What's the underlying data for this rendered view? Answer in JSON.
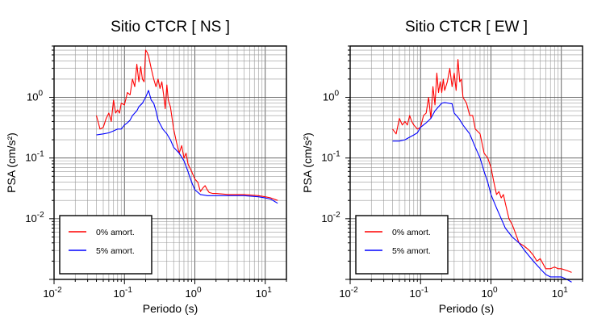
{
  "chart_data": [
    {
      "type": "line",
      "title": "Sitio CTCR [ NS ]",
      "xlabel": "Periodo (s)",
      "ylabel": "PSA (cm/s²)",
      "xscale": "log",
      "yscale": "log",
      "xlim": [
        0.01,
        20
      ],
      "ylim": [
        0.001,
        7
      ],
      "grid": true,
      "legend": {
        "position": "bottom-left",
        "entries": [
          "0% amort.",
          "5% amort."
        ]
      },
      "series": [
        {
          "name": "0% amort.",
          "color": "#ff0000",
          "x": [
            0.04,
            0.045,
            0.05,
            0.055,
            0.06,
            0.065,
            0.07,
            0.075,
            0.08,
            0.085,
            0.09,
            0.1,
            0.11,
            0.12,
            0.13,
            0.14,
            0.15,
            0.16,
            0.17,
            0.18,
            0.19,
            0.2,
            0.21,
            0.22,
            0.24,
            0.26,
            0.28,
            0.3,
            0.32,
            0.34,
            0.36,
            0.38,
            0.4,
            0.42,
            0.45,
            0.5,
            0.55,
            0.6,
            0.65,
            0.7,
            0.75,
            0.8,
            0.9,
            1.0,
            1.1,
            1.2,
            1.3,
            1.4,
            1.5,
            1.6,
            1.8,
            2.0,
            3.0,
            5.0,
            8.0,
            10.0,
            12.0,
            15.0
          ],
          "y": [
            0.5,
            0.3,
            0.32,
            0.45,
            0.55,
            0.4,
            0.9,
            0.55,
            0.62,
            0.55,
            0.8,
            0.75,
            1.2,
            1.1,
            2.0,
            1.5,
            3.5,
            1.8,
            3.2,
            2.0,
            1.8,
            6.0,
            5.5,
            4.8,
            3.0,
            2.0,
            1.5,
            2.0,
            1.4,
            1.8,
            1.1,
            0.65,
            1.6,
            0.9,
            0.7,
            0.3,
            0.18,
            0.12,
            0.16,
            0.1,
            0.12,
            0.08,
            0.06,
            0.045,
            0.04,
            0.028,
            0.032,
            0.035,
            0.03,
            0.027,
            0.026,
            0.026,
            0.025,
            0.025,
            0.024,
            0.023,
            0.022,
            0.02
          ]
        },
        {
          "name": "5% amort.",
          "color": "#0000ff",
          "x": [
            0.04,
            0.05,
            0.06,
            0.07,
            0.08,
            0.09,
            0.1,
            0.11,
            0.12,
            0.13,
            0.14,
            0.15,
            0.16,
            0.18,
            0.2,
            0.22,
            0.24,
            0.26,
            0.28,
            0.3,
            0.35,
            0.4,
            0.45,
            0.5,
            0.6,
            0.7,
            0.8,
            0.9,
            1.0,
            1.2,
            1.5,
            2.0,
            3.0,
            5.0,
            8.0,
            10.0,
            12.0,
            15.0
          ],
          "y": [
            0.24,
            0.25,
            0.26,
            0.28,
            0.3,
            0.3,
            0.35,
            0.38,
            0.42,
            0.5,
            0.55,
            0.6,
            0.7,
            0.8,
            1.0,
            1.3,
            0.9,
            0.8,
            0.6,
            0.42,
            0.3,
            0.25,
            0.2,
            0.15,
            0.12,
            0.09,
            0.06,
            0.04,
            0.03,
            0.025,
            0.024,
            0.024,
            0.024,
            0.024,
            0.023,
            0.022,
            0.021,
            0.018
          ]
        }
      ]
    },
    {
      "type": "line",
      "title": "Sitio CTCR [ EW ]",
      "xlabel": "Periodo (s)",
      "ylabel": "PSA (cm/s²)",
      "xscale": "log",
      "yscale": "log",
      "xlim": [
        0.01,
        20
      ],
      "ylim": [
        0.001,
        7
      ],
      "grid": true,
      "legend": {
        "position": "bottom-left",
        "entries": [
          "0% amort.",
          "5% amort."
        ]
      },
      "series": [
        {
          "name": "0% amort.",
          "color": "#ff0000",
          "x": [
            0.04,
            0.045,
            0.05,
            0.055,
            0.06,
            0.065,
            0.07,
            0.075,
            0.08,
            0.09,
            0.1,
            0.11,
            0.12,
            0.13,
            0.14,
            0.15,
            0.16,
            0.17,
            0.18,
            0.19,
            0.2,
            0.21,
            0.22,
            0.24,
            0.26,
            0.28,
            0.3,
            0.32,
            0.34,
            0.36,
            0.38,
            0.4,
            0.45,
            0.5,
            0.55,
            0.6,
            0.7,
            0.8,
            0.9,
            1.0,
            1.1,
            1.2,
            1.3,
            1.4,
            1.5,
            1.6,
            1.8,
            2.0,
            2.2,
            2.5,
            3.0,
            3.5,
            4.0,
            4.5,
            5.0,
            5.5,
            6.0,
            7.0,
            8.0,
            9.0,
            10.0,
            12.0,
            14.0
          ],
          "y": [
            0.3,
            0.25,
            0.45,
            0.35,
            0.4,
            0.35,
            0.5,
            0.4,
            0.35,
            0.3,
            0.32,
            0.5,
            0.55,
            1.0,
            0.45,
            1.5,
            0.75,
            2.5,
            1.2,
            1.8,
            1.2,
            2.0,
            1.3,
            1.8,
            3.0,
            1.5,
            2.5,
            1.3,
            4.2,
            1.8,
            2.0,
            1.0,
            0.8,
            0.5,
            0.5,
            0.3,
            0.25,
            0.12,
            0.1,
            0.07,
            0.04,
            0.025,
            0.028,
            0.022,
            0.025,
            0.018,
            0.01,
            0.008,
            0.006,
            0.004,
            0.0035,
            0.003,
            0.0025,
            0.002,
            0.0022,
            0.0018,
            0.0015,
            0.0015,
            0.0016,
            0.0015,
            0.0015,
            0.0014,
            0.0013
          ]
        },
        {
          "name": "5% amort.",
          "color": "#0000ff",
          "x": [
            0.04,
            0.05,
            0.06,
            0.07,
            0.08,
            0.09,
            0.1,
            0.12,
            0.14,
            0.16,
            0.18,
            0.2,
            0.22,
            0.25,
            0.28,
            0.3,
            0.35,
            0.4,
            0.5,
            0.6,
            0.7,
            0.8,
            0.9,
            1.0,
            1.2,
            1.4,
            1.6,
            2.0,
            2.5,
            3.0,
            4.0,
            5.0,
            6.0,
            7.0,
            8.0,
            10.0,
            12.0,
            14.0
          ],
          "y": [
            0.19,
            0.19,
            0.2,
            0.22,
            0.24,
            0.26,
            0.32,
            0.38,
            0.45,
            0.6,
            0.7,
            0.8,
            0.82,
            0.8,
            0.78,
            0.55,
            0.45,
            0.35,
            0.25,
            0.15,
            0.1,
            0.06,
            0.04,
            0.025,
            0.015,
            0.01,
            0.007,
            0.005,
            0.004,
            0.003,
            0.002,
            0.0015,
            0.0012,
            0.0011,
            0.0011,
            0.0011,
            0.001,
            0.0009
          ]
        }
      ]
    }
  ]
}
